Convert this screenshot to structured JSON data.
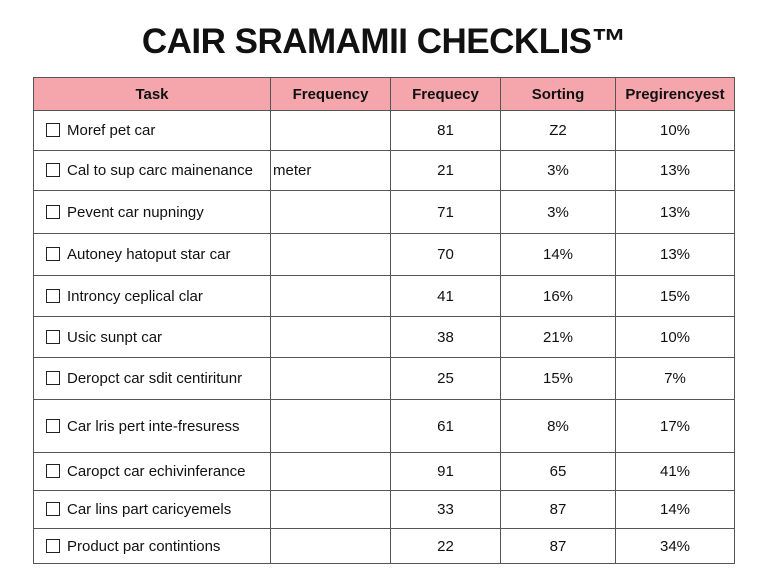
{
  "header": {
    "title": "CAIR SRAMAMII CHECKLIS™"
  },
  "table": {
    "columns": [
      "Task",
      "Frequency",
      "Frequecy",
      "Sorting",
      "Pregirencyest"
    ],
    "rows": [
      {
        "task": "Moref pet car",
        "frequecy": "81",
        "sorting": "Z2",
        "pregirencyest": "10%"
      },
      {
        "task": "Cal to sup carc mainenance",
        "frequency": "meter",
        "frequecy": "21",
        "sorting": "3%",
        "pregirencyest": "13%"
      },
      {
        "task": "Pevent car nupningy",
        "frequecy": "71",
        "sorting": "3%",
        "pregirencyest": "13%"
      },
      {
        "task": "Autoney hatoput star car",
        "frequecy": "70",
        "sorting": "14%",
        "pregirencyest": "13%"
      },
      {
        "task": "Introncy ceplical clar",
        "frequecy": "41",
        "sorting": "16%",
        "pregirencyest": "15%"
      },
      {
        "task": "Usic sunpt car",
        "frequecy": "38",
        "sorting": "21%",
        "pregirencyest": "10%"
      },
      {
        "task": "Deropct car sdit centiritunr",
        "frequecy": "25",
        "sorting": "15%",
        "pregirencyest": "7%"
      },
      {
        "task": "Car lris pert inte-fresuress",
        "frequecy": "61",
        "sorting": "8%",
        "pregirencyest": "17%"
      },
      {
        "task": "Caropct car echivinferance",
        "frequecy": "91",
        "sorting": "65",
        "pregirencyest": "41%"
      },
      {
        "task": "Car lins part caricyemels",
        "frequecy": "33",
        "sorting": "87",
        "pregirencyest": "14%"
      },
      {
        "task": "Product par contintions",
        "frequecy": "22",
        "sorting": "87",
        "pregirencyest": "34%"
      }
    ]
  }
}
